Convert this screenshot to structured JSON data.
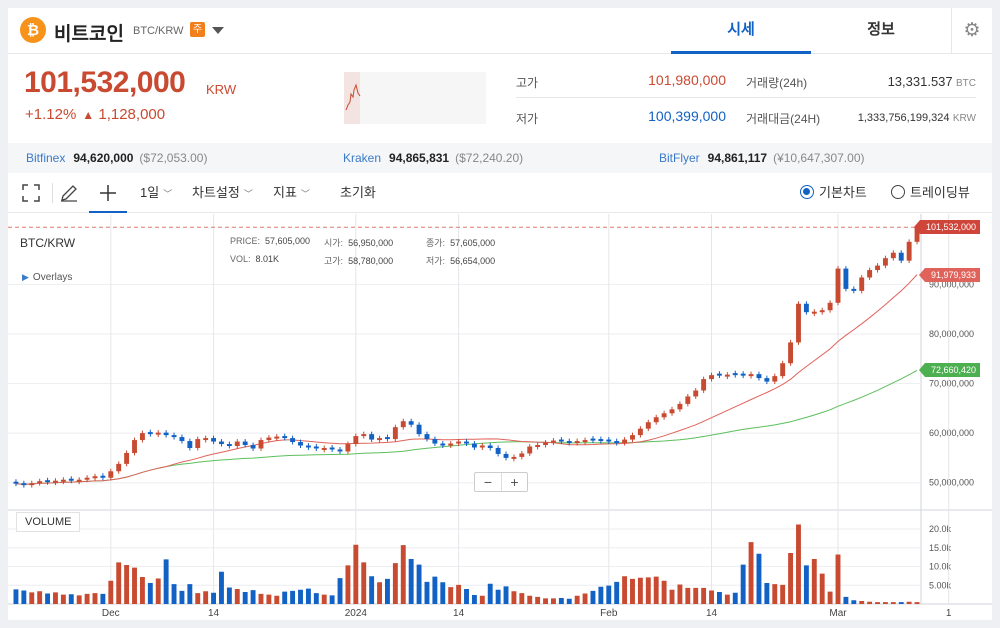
{
  "header": {
    "coin_symbol": "₿",
    "coin_name": "비트코인",
    "pair": "BTC/KRW",
    "warning_badge": "주",
    "tabs": [
      {
        "label": "시세",
        "active": true
      },
      {
        "label": "정보",
        "active": false
      }
    ],
    "gear": "⚙"
  },
  "price": {
    "value": "101,532,000",
    "unit": "KRW",
    "change_pct": "+1.12%",
    "change_arrow": "▲",
    "change_abs": "1,128,000"
  },
  "stats": {
    "high_label": "고가",
    "high": "101,980,000",
    "low_label": "저가",
    "low": "100,399,000",
    "volume_label": "거래량(24h)",
    "volume": "13,331.537",
    "volume_unit": "BTC",
    "amount_label": "거래대금(24H)",
    "amount": "1,333,756,199,324",
    "amount_unit": "KRW"
  },
  "exchanges": [
    {
      "name": "Bitfinex",
      "price": "94,620,000",
      "fx": "($72,053.00)"
    },
    {
      "name": "Kraken",
      "price": "94,865,831",
      "fx": "($72,240.20)"
    },
    {
      "name": "BitFlyer",
      "price": "94,861,117",
      "fx": "(¥10,647,307.00)"
    }
  ],
  "toolbar": {
    "interval": "1일",
    "chart_settings": "차트설정",
    "indicators": "지표",
    "reset": "초기화",
    "basic_chart": "기본차트",
    "tradingview": "트레이딩뷰",
    "chevron": "﹀"
  },
  "chart_info": {
    "pair": "BTC/KRW",
    "overlays": "Overlays",
    "price_k": "PRICE:",
    "price_v": "57,605,000",
    "open_k": "시가:",
    "open_v": "56,950,000",
    "close_k": "종가:",
    "close_v": "57,605,000",
    "vol_k": "VOL:",
    "vol_v": "8.01K",
    "high_k": "고가:",
    "high_v": "58,780,000",
    "low_k": "저가:",
    "low_v": "56,654,000",
    "volume_label": "VOLUME",
    "zoom_out": "−",
    "zoom_in": "+"
  },
  "chart_data": {
    "type": "candlestick",
    "price_axis": [
      "90,000,000",
      "80,000,000",
      "70,000,000",
      "60,000,000",
      "50,000,000"
    ],
    "price_ticks": [
      90000000,
      80000000,
      70000000,
      60000000,
      50000000
    ],
    "price_range": [
      45700000,
      103000000
    ],
    "volume_axis": [
      "20.0k",
      "15.0k",
      "10.0k",
      "5.00k"
    ],
    "volume_ticks": [
      20000,
      15000,
      10000,
      5000
    ],
    "volume_range": [
      0,
      24000
    ],
    "x_labels": [
      {
        "label": "Dec",
        "index": 12
      },
      {
        "label": "14",
        "index": 25
      },
      {
        "label": "2024",
        "index": 43
      },
      {
        "label": "14",
        "index": 56
      },
      {
        "label": "Feb",
        "index": 75
      },
      {
        "label": "14",
        "index": 88
      },
      {
        "label": "Mar",
        "index": 104
      },
      {
        "label": "1",
        "index": 118
      }
    ],
    "last_price_label": "101,532,000",
    "last_price": 101532000,
    "ma_short_label": "91,979,933",
    "ma_short": 91979933,
    "ma_long_label": "72,660,420",
    "ma_long": 72660420,
    "colors": {
      "up": "#c84a31",
      "down": "#1261c4",
      "ma_short": "#e0625a",
      "ma_long": "#5cbf5c",
      "last_tag": "#d0453a",
      "ma_short_tag": "#e0625a",
      "ma_long_tag": "#4caf50"
    },
    "closes": [
      49.8,
      49.5,
      49.9,
      50.3,
      50.1,
      50.4,
      50.6,
      50.4,
      50.6,
      51.0,
      51.3,
      51.0,
      52.3,
      53.8,
      56.0,
      58.6,
      60.0,
      59.8,
      60.1,
      59.6,
      59.2,
      58.4,
      57.0,
      58.8,
      59.0,
      58.3,
      57.8,
      57.4,
      58.3,
      57.6,
      56.9,
      58.6,
      59.1,
      59.3,
      59.0,
      58.2,
      57.5,
      57.1,
      56.9,
      57.0,
      56.7,
      56.3,
      57.8,
      59.4,
      59.8,
      58.7,
      59.0,
      58.8,
      61.2,
      62.4,
      61.7,
      59.8,
      58.8,
      57.9,
      57.5,
      57.9,
      58.3,
      57.9,
      57.1,
      57.5,
      57.0,
      55.8,
      55.0,
      55.2,
      55.9,
      57.3,
      57.6,
      58.1,
      58.5,
      58.3,
      58.0,
      58.4,
      58.6,
      58.5,
      58.4,
      58.3,
      58.0,
      58.7,
      59.6,
      60.9,
      62.2,
      63.2,
      64.0,
      64.8,
      65.9,
      67.4,
      68.6,
      70.9,
      71.7,
      71.6,
      71.8,
      71.7,
      71.6,
      71.9,
      71.1,
      70.4,
      71.5,
      74.1,
      78.3,
      86.1,
      84.4,
      84.5,
      84.8,
      86.3,
      93.2,
      89.1,
      88.7,
      91.4,
      92.9,
      93.8,
      95.3,
      96.4,
      94.8,
      98.6,
      101.5
    ],
    "volumes": [
      3.9,
      3.6,
      3.1,
      3.4,
      2.8,
      3.1,
      2.5,
      2.6,
      2.3,
      2.7,
      2.9,
      2.7,
      6.2,
      11.1,
      10.4,
      9.7,
      7.2,
      5.6,
      6.8,
      11.9,
      5.3,
      3.5,
      5.3,
      2.9,
      3.4,
      3.0,
      8.6,
      4.4,
      4.0,
      3.2,
      3.7,
      2.7,
      2.5,
      2.2,
      3.3,
      3.5,
      3.8,
      4.1,
      2.9,
      2.5,
      2.3,
      6.9,
      10.3,
      15.8,
      11.1,
      7.4,
      5.8,
      6.7,
      10.9,
      15.7,
      12.0,
      10.5,
      5.9,
      7.3,
      5.8,
      4.5,
      5.1,
      4.0,
      2.4,
      2.2,
      5.4,
      3.8,
      4.7,
      3.4,
      2.9,
      2.2,
      1.9,
      1.5,
      1.5,
      1.6,
      1.4,
      2.2,
      2.8,
      3.5,
      4.6,
      4.9,
      5.9,
      7.4,
      6.7,
      7.0,
      7.1,
      7.3,
      6.2,
      3.8,
      5.2,
      4.3,
      4.3,
      4.3,
      3.6,
      3.2,
      2.5,
      3.0,
      10.5,
      16.5,
      13.4,
      5.6,
      5.3,
      5.1,
      13.6,
      21.2,
      10.3,
      12.0,
      8.1,
      3.3,
      13.2,
      1.9,
      1.0,
      0.8,
      0.6,
      0.5,
      0.5,
      0.5,
      0.5,
      0.6,
      0.5
    ],
    "ups": [
      0,
      0,
      1,
      1,
      0,
      1,
      1,
      0,
      1,
      1,
      1,
      0,
      1,
      1,
      1,
      1,
      1,
      0,
      1,
      0,
      0,
      0,
      0,
      1,
      1,
      0,
      0,
      0,
      1,
      0,
      0,
      1,
      1,
      1,
      0,
      0,
      0,
      0,
      0,
      1,
      0,
      0,
      1,
      1,
      1,
      0,
      1,
      0,
      1,
      1,
      0,
      0,
      0,
      0,
      0,
      1,
      1,
      0,
      0,
      1,
      0,
      0,
      0,
      1,
      1,
      1,
      1,
      1,
      1,
      0,
      0,
      1,
      1,
      0,
      0,
      0,
      0,
      1,
      1,
      1,
      1,
      1,
      1,
      1,
      1,
      1,
      1,
      1,
      1,
      0,
      1,
      0,
      0,
      1,
      0,
      0,
      1,
      1,
      1,
      1,
      0,
      1,
      1,
      1,
      1,
      0,
      0,
      1,
      1,
      1,
      1,
      1,
      0,
      1,
      1
    ]
  }
}
